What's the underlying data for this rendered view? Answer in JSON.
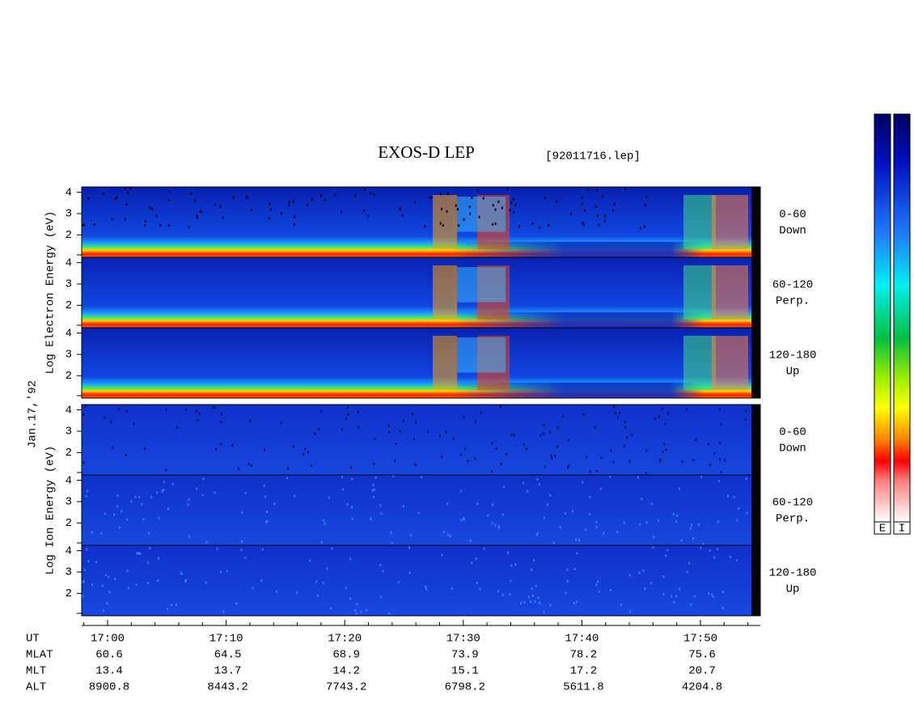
{
  "chart_data": {
    "type": "spectrogram",
    "title": "EXOS-D LEP",
    "file": "[92011716.lep]",
    "date": "Jan.17,'92",
    "ylim": [
      0.95,
      4.25
    ],
    "yticks": [
      2,
      3,
      4
    ],
    "groups": [
      {
        "label": "Log Electron Energy (eV)",
        "panels": [
          {
            "pitch": "0-60",
            "direction": "Down"
          },
          {
            "pitch": "60-120",
            "direction": "Perp."
          },
          {
            "pitch": "120-180",
            "direction": "Up"
          }
        ]
      },
      {
        "label": "Log Ion Energy (eV)",
        "panels": [
          {
            "pitch": "0-60",
            "direction": "Down"
          },
          {
            "pitch": "60-120",
            "direction": "Perp."
          },
          {
            "pitch": "120-180",
            "direction": "Up"
          }
        ]
      }
    ],
    "rows": [
      {
        "name": "UT",
        "values": [
          "17:00",
          "17:10",
          "17:20",
          "17:30",
          "17:40",
          "17:50"
        ]
      },
      {
        "name": "MLAT",
        "values": [
          "60.6",
          "64.5",
          "68.9",
          "73.9",
          "78.2",
          "75.6"
        ]
      },
      {
        "name": "MLT",
        "values": [
          "13.4",
          "13.7",
          "14.2",
          "15.1",
          "17.2",
          "20.7"
        ]
      },
      {
        "name": "ALT",
        "values": [
          "8900.8",
          "8443.2",
          "7743.2",
          "6798.2",
          "5611.8",
          "4204.8"
        ]
      }
    ],
    "colorbars": [
      "E",
      "I"
    ]
  }
}
